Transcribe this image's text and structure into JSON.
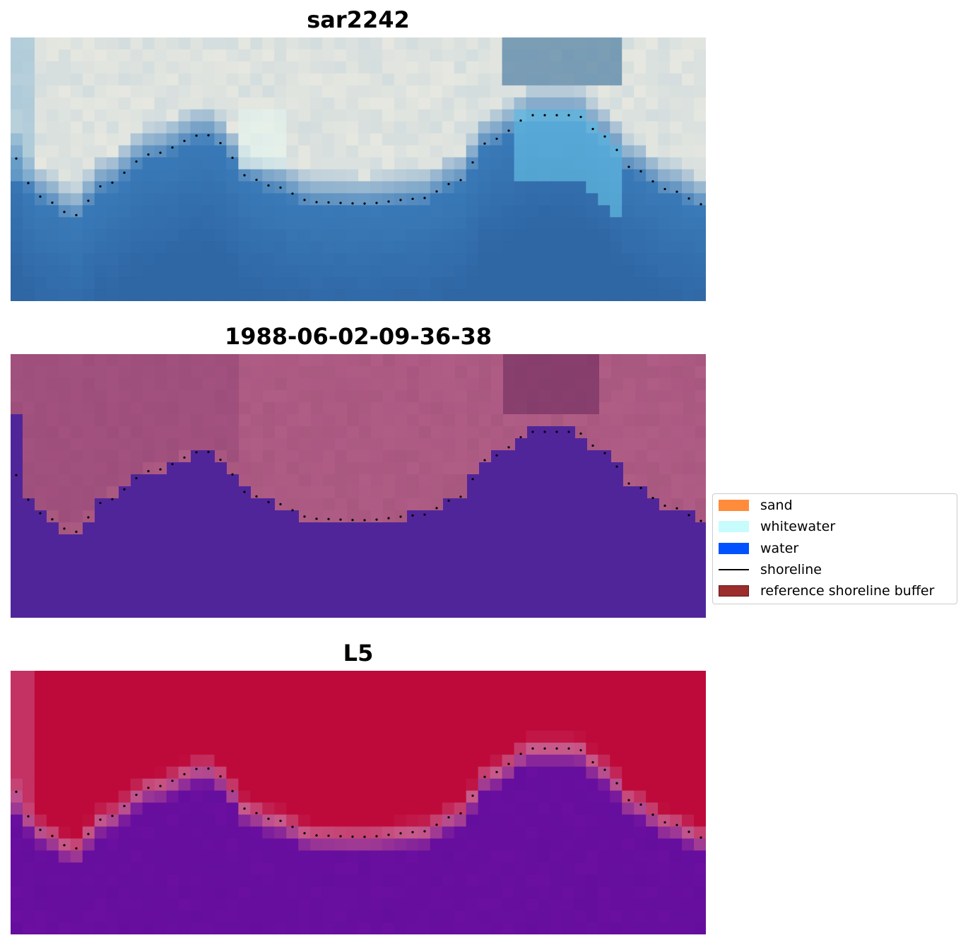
{
  "panels": [
    {
      "title": "sar2242"
    },
    {
      "title": "1988-06-02-09-36-38"
    },
    {
      "title": "L5"
    }
  ],
  "legend": {
    "items": [
      {
        "label": "sand",
        "color": "#ff8c3a",
        "kind": "patch"
      },
      {
        "label": "whitewater",
        "color": "#c8fcfc",
        "kind": "patch"
      },
      {
        "label": "water",
        "color": "#0051ff",
        "kind": "patch"
      },
      {
        "label": "shoreline",
        "color": "#000000",
        "kind": "line"
      },
      {
        "label": "reference shoreline buffer",
        "color": "#9b2d2d",
        "kind": "patch"
      }
    ]
  },
  "colors": {
    "land_pink": "#a8577f",
    "water_purple": "#51259a",
    "prob_red": "#be0a3a",
    "prob_purple": "#6a0fa0",
    "rgb_sky": "#e8e4dc",
    "rgb_sea": "#3a7ab8"
  }
}
